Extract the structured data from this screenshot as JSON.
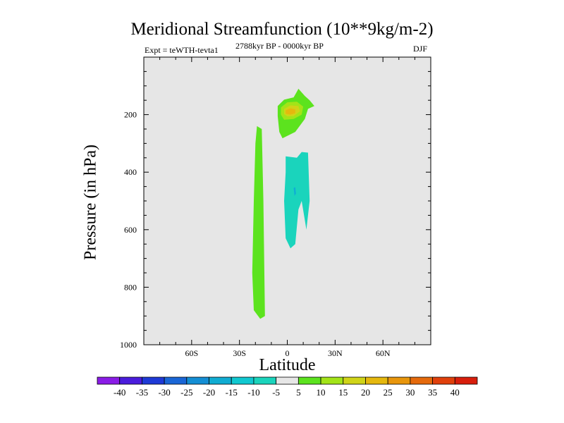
{
  "header": {
    "title": "Meridional Streamfunction (10**9kg/m-2)",
    "left_string": "Expt = teWTH-tevta1",
    "center_string": "2788kyr BP - 0000kyr BP",
    "right_string": "DJF"
  },
  "chart_data": {
    "type": "contour",
    "title": "Meridional Streamfunction (10**9kg/m-2)",
    "xlabel": "Latitude",
    "ylabel": "Pressure (in hPa)",
    "xlim": [
      -90,
      90
    ],
    "ylim": [
      1000,
      0
    ],
    "x_ticks": [
      {
        "value": -60,
        "label": "60S"
      },
      {
        "value": -30,
        "label": "30S"
      },
      {
        "value": 0,
        "label": "0"
      },
      {
        "value": 30,
        "label": "30N"
      },
      {
        "value": 60,
        "label": "60N"
      }
    ],
    "y_ticks": [
      {
        "value": 200,
        "label": "200"
      },
      {
        "value": 400,
        "label": "400"
      },
      {
        "value": 600,
        "label": "600"
      },
      {
        "value": 800,
        "label": "800"
      },
      {
        "value": 1000,
        "label": "1000"
      }
    ],
    "background_color": "#e6e6e6",
    "regions": [
      {
        "name": "southern-positive-cell",
        "level": "5 to 10",
        "color": "#5ce31e",
        "polygon": [
          [
            -19,
            240
          ],
          [
            -16,
            250
          ],
          [
            -15,
            500
          ],
          [
            -14,
            900
          ],
          [
            -17,
            910
          ],
          [
            -21,
            880
          ],
          [
            -22,
            750
          ],
          [
            -21,
            500
          ],
          [
            -20,
            300
          ]
        ]
      },
      {
        "name": "upper-positive-cell",
        "level": "5 to 10",
        "color": "#5ce31e",
        "polygon": [
          [
            -6,
            205
          ],
          [
            -6,
            170
          ],
          [
            -2,
            148
          ],
          [
            4,
            140
          ],
          [
            6,
            120
          ],
          [
            7,
            110
          ],
          [
            11,
            135
          ],
          [
            14,
            150
          ],
          [
            17,
            170
          ],
          [
            13,
            180
          ],
          [
            11,
            215
          ],
          [
            5,
            260
          ],
          [
            -3,
            282
          ],
          [
            -5,
            260
          ]
        ]
      },
      {
        "name": "upper-positive-core",
        "level": "10 to 15",
        "color": "#a3e418",
        "polygon": [
          [
            -4,
            175
          ],
          [
            0,
            157
          ],
          [
            6,
            155
          ],
          [
            10,
            172
          ],
          [
            9,
            200
          ],
          [
            4,
            215
          ],
          [
            -2,
            218
          ],
          [
            -4,
            200
          ]
        ]
      },
      {
        "name": "upper-positive-peak",
        "level": "15 to 20",
        "color": "#d0d418",
        "polygon": [
          [
            -2,
            180
          ],
          [
            2,
            168
          ],
          [
            7,
            170
          ],
          [
            8,
            188
          ],
          [
            4,
            205
          ],
          [
            0,
            206
          ],
          [
            -2,
            198
          ]
        ]
      },
      {
        "name": "upper-positive-max",
        "level": "20 to 25",
        "color": "#e5b80e",
        "polygon": [
          [
            -1,
            185
          ],
          [
            2,
            178
          ],
          [
            5,
            182
          ],
          [
            5,
            195
          ],
          [
            2,
            200
          ],
          [
            -1,
            197
          ]
        ]
      },
      {
        "name": "tropical-negative-cell",
        "level": "-10 to -5",
        "color": "#1ad4bc",
        "polygon": [
          [
            -1,
            345
          ],
          [
            6,
            350
          ],
          [
            9,
            330
          ],
          [
            13,
            332
          ],
          [
            14,
            500
          ],
          [
            12,
            600
          ],
          [
            9,
            500
          ],
          [
            7,
            530
          ],
          [
            5,
            650
          ],
          [
            2,
            665
          ],
          [
            -1,
            630
          ],
          [
            -2,
            500
          ],
          [
            -1,
            400
          ]
        ]
      },
      {
        "name": "tropical-negative-core",
        "level": "-15 to -10",
        "color": "#0fb0d4",
        "polygon": [
          [
            4,
            455
          ],
          [
            5,
            452
          ],
          [
            5.5,
            475
          ],
          [
            4.5,
            482
          ]
        ]
      }
    ],
    "colorbar": {
      "levels": [
        -40,
        -35,
        -30,
        -25,
        -20,
        -15,
        -10,
        -5,
        5,
        10,
        15,
        20,
        25,
        30,
        35,
        40
      ],
      "colors": [
        "#8a1ce6",
        "#4a1cdc",
        "#1e3ad6",
        "#1a66d6",
        "#148ed4",
        "#10acd2",
        "#10c8d0",
        "#1ad4bc",
        "#e6e6e6",
        "#5ce31e",
        "#a3e418",
        "#d0d418",
        "#e5b80e",
        "#e8960c",
        "#e56a0c",
        "#e0400c",
        "#d81e0c"
      ]
    }
  }
}
